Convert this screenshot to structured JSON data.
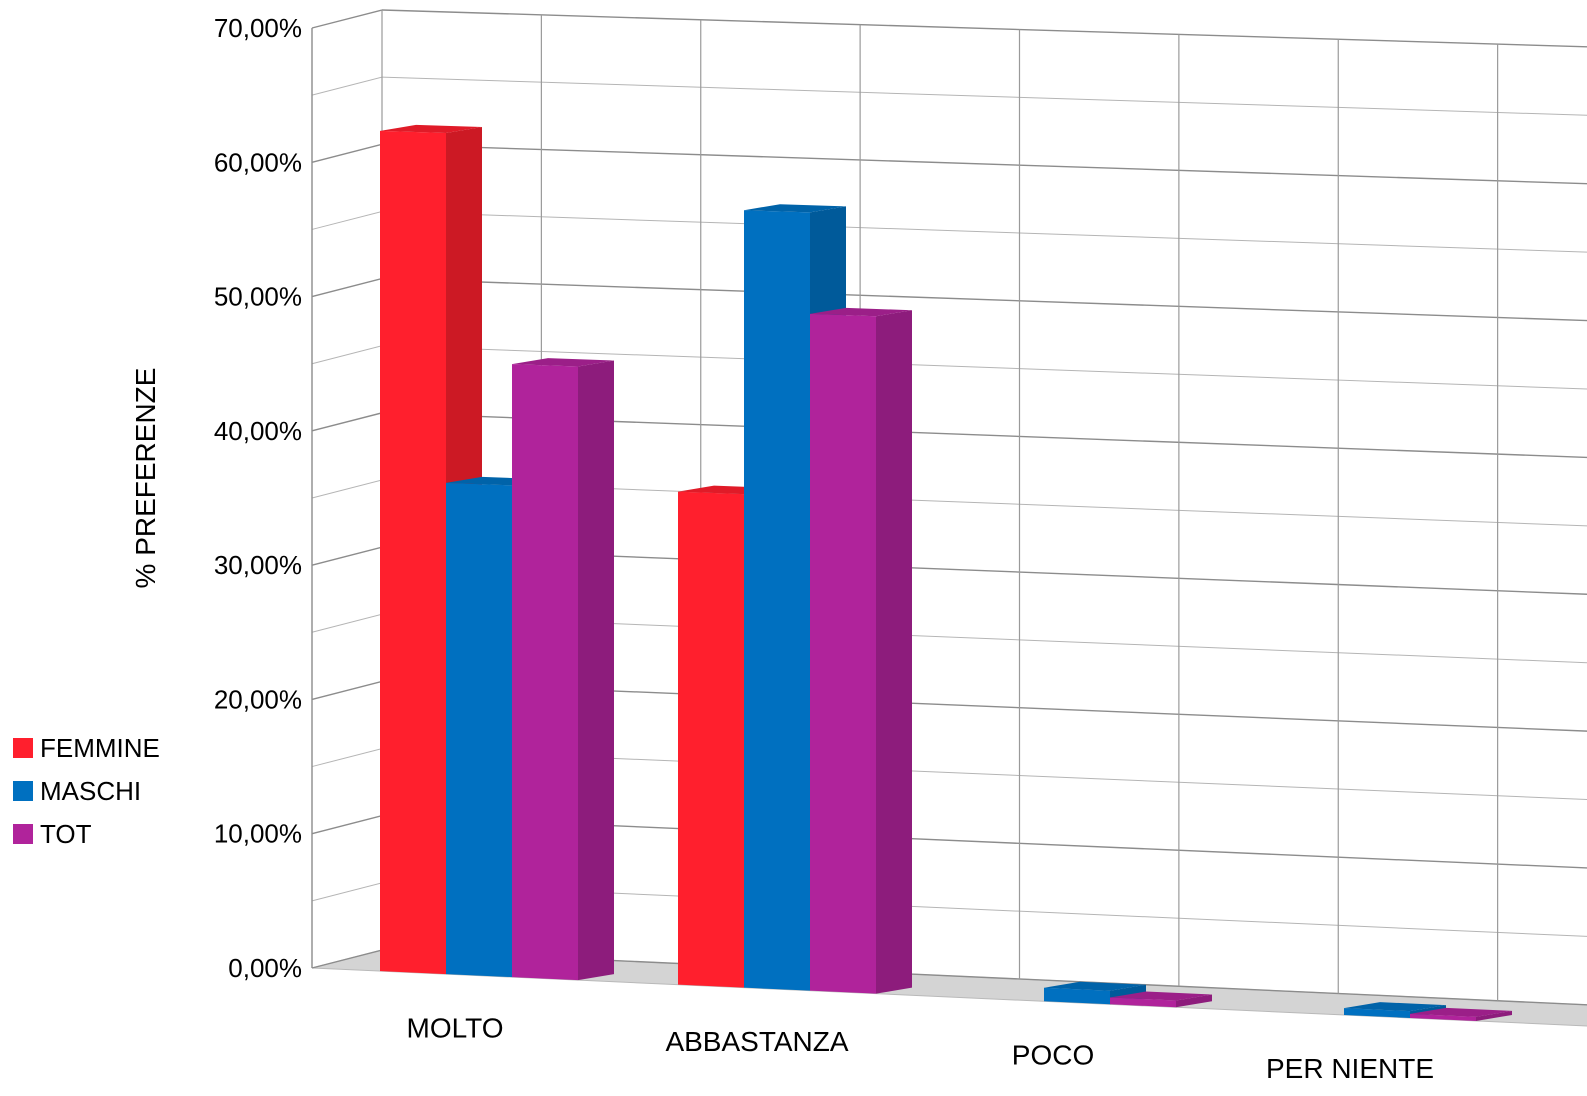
{
  "chart_data": {
    "type": "bar",
    "style": "3d-clustered-column",
    "title": "",
    "xlabel": "",
    "ylabel": "% PREFERENZE",
    "categories": [
      "MOLTO",
      "ABBASTANZA",
      "POCO",
      "PER NIENTE"
    ],
    "series": [
      {
        "name": "FEMMINE",
        "color": "#ff1f2d",
        "values": [
          62.5,
          36.5,
          0,
          0
        ]
      },
      {
        "name": "MASCHI",
        "color": "#0070c0",
        "values": [
          36.5,
          57.5,
          1.0,
          0.5
        ]
      },
      {
        "name": "TOT",
        "color": "#b0239b",
        "values": [
          45.5,
          50.0,
          0.5,
          0.3
        ]
      }
    ],
    "ylim": [
      0,
      70
    ],
    "yticks": [
      0,
      10,
      20,
      30,
      40,
      50,
      60,
      70
    ],
    "ytick_labels": [
      "0,00%",
      "10,00%",
      "20,00%",
      "30,00%",
      "40,00%",
      "50,00%",
      "60,00%",
      "70,00%"
    ],
    "grid": true,
    "legend_position": "left"
  }
}
